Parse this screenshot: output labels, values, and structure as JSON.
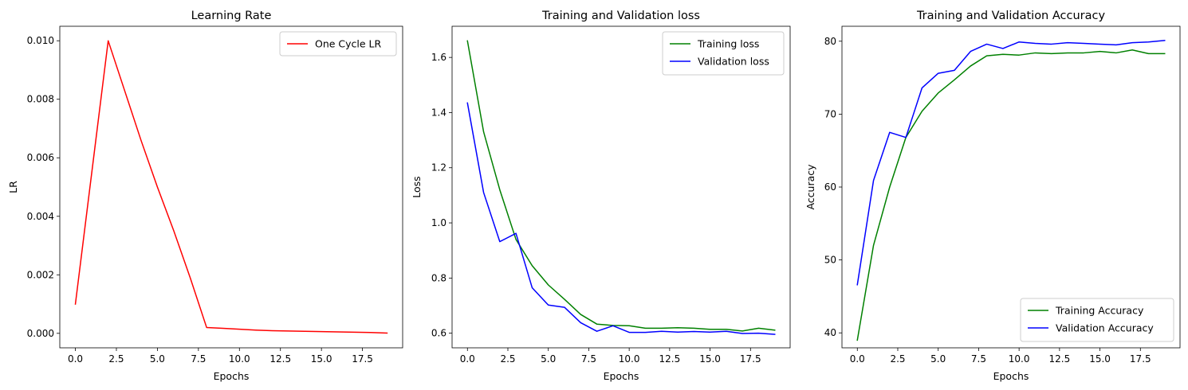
{
  "chart_data": [
    {
      "type": "line",
      "title": "Learning Rate",
      "xlabel": "Epochs",
      "ylabel": "LR",
      "xlim": [
        -0.95,
        19.95
      ],
      "ylim": [
        -0.000495,
        0.010495
      ],
      "xticks": [
        0,
        2.5,
        5,
        7.5,
        10,
        12.5,
        15,
        17.5
      ],
      "xtick_labels": [
        "0.0",
        "2.5",
        "5.0",
        "7.5",
        "10.0",
        "12.5",
        "15.0",
        "17.5"
      ],
      "yticks": [
        0,
        0.002,
        0.004,
        0.006,
        0.008,
        0.01
      ],
      "ytick_labels": [
        "0.000",
        "0.002",
        "0.004",
        "0.006",
        "0.008",
        "0.010"
      ],
      "legend": "top-right",
      "grid": false,
      "series": [
        {
          "name": "One Cycle LR",
          "color": "#ff0000",
          "x": [
            0,
            1,
            2,
            3,
            4,
            5,
            6,
            7,
            8,
            9,
            10,
            11,
            12,
            13,
            14,
            15,
            16,
            17,
            18,
            19
          ],
          "y": [
            0.001,
            0.0055,
            0.01,
            0.0083,
            0.0066,
            0.005,
            0.0035,
            0.0019,
            0.0002,
            0.00017,
            0.00014,
            0.00011,
            9e-05,
            8e-05,
            7e-05,
            6e-05,
            5e-05,
            4e-05,
            3e-05,
            1e-05
          ]
        }
      ]
    },
    {
      "type": "line",
      "title": "Training and Validation loss",
      "xlabel": "Epochs",
      "ylabel": "Loss",
      "xlim": [
        -0.95,
        19.95
      ],
      "ylim": [
        0.547,
        1.713
      ],
      "xticks": [
        0,
        2.5,
        5,
        7.5,
        10,
        12.5,
        15,
        17.5
      ],
      "xtick_labels": [
        "0.0",
        "2.5",
        "5.0",
        "7.5",
        "10.0",
        "12.5",
        "15.0",
        "17.5"
      ],
      "yticks": [
        0.6,
        0.8,
        1.0,
        1.2,
        1.4,
        1.6
      ],
      "ytick_labels": [
        "0.6",
        "0.8",
        "1.0",
        "1.2",
        "1.4",
        "1.6"
      ],
      "legend": "top-right",
      "grid": false,
      "series": [
        {
          "name": "Training loss",
          "color": "#008000",
          "x": [
            0,
            1,
            2,
            3,
            4,
            5,
            6,
            7,
            8,
            9,
            10,
            11,
            12,
            13,
            14,
            15,
            16,
            17,
            18,
            19
          ],
          "y": [
            1.66,
            1.33,
            1.12,
            0.94,
            0.845,
            0.775,
            0.723,
            0.668,
            0.633,
            0.628,
            0.627,
            0.618,
            0.618,
            0.62,
            0.618,
            0.614,
            0.614,
            0.608,
            0.618,
            0.611
          ]
        },
        {
          "name": "Validation loss",
          "color": "#0000ff",
          "x": [
            0,
            1,
            2,
            3,
            4,
            5,
            6,
            7,
            8,
            9,
            10,
            11,
            12,
            13,
            14,
            15,
            16,
            17,
            18,
            19
          ],
          "y": [
            1.435,
            1.11,
            0.932,
            0.962,
            0.765,
            0.702,
            0.694,
            0.638,
            0.607,
            0.627,
            0.603,
            0.603,
            0.607,
            0.604,
            0.606,
            0.604,
            0.607,
            0.599,
            0.6,
            0.596
          ]
        }
      ]
    },
    {
      "type": "line",
      "title": "Training and Validation Accuracy",
      "xlabel": "Epochs",
      "ylabel": "Accuracy",
      "xlim": [
        -0.95,
        19.95
      ],
      "ylim": [
        37.95,
        82.05
      ],
      "xticks": [
        0,
        2.5,
        5,
        7.5,
        10,
        12.5,
        15,
        17.5
      ],
      "xtick_labels": [
        "0.0",
        "2.5",
        "5.0",
        "7.5",
        "10.0",
        "12.5",
        "15.0",
        "17.5"
      ],
      "yticks": [
        40,
        50,
        60,
        70,
        80
      ],
      "ytick_labels": [
        "40",
        "50",
        "60",
        "70",
        "80"
      ],
      "legend": "bottom-right",
      "grid": false,
      "series": [
        {
          "name": "Training Accuracy",
          "color": "#008000",
          "x": [
            0,
            1,
            2,
            3,
            4,
            5,
            6,
            7,
            8,
            9,
            10,
            11,
            12,
            13,
            14,
            15,
            16,
            17,
            18,
            19
          ],
          "y": [
            39.0,
            52.0,
            60.0,
            66.8,
            70.4,
            72.9,
            74.7,
            76.6,
            78.0,
            78.2,
            78.1,
            78.4,
            78.3,
            78.4,
            78.4,
            78.6,
            78.4,
            78.8,
            78.3,
            78.3
          ]
        },
        {
          "name": "Validation Accuracy",
          "color": "#0000ff",
          "x": [
            0,
            1,
            2,
            3,
            4,
            5,
            6,
            7,
            8,
            9,
            10,
            11,
            12,
            13,
            14,
            15,
            16,
            17,
            18,
            19
          ],
          "y": [
            46.6,
            60.9,
            67.5,
            66.8,
            73.6,
            75.6,
            76.0,
            78.6,
            79.6,
            79.0,
            79.9,
            79.7,
            79.6,
            79.8,
            79.7,
            79.6,
            79.5,
            79.8,
            79.9,
            80.1
          ]
        }
      ]
    }
  ]
}
